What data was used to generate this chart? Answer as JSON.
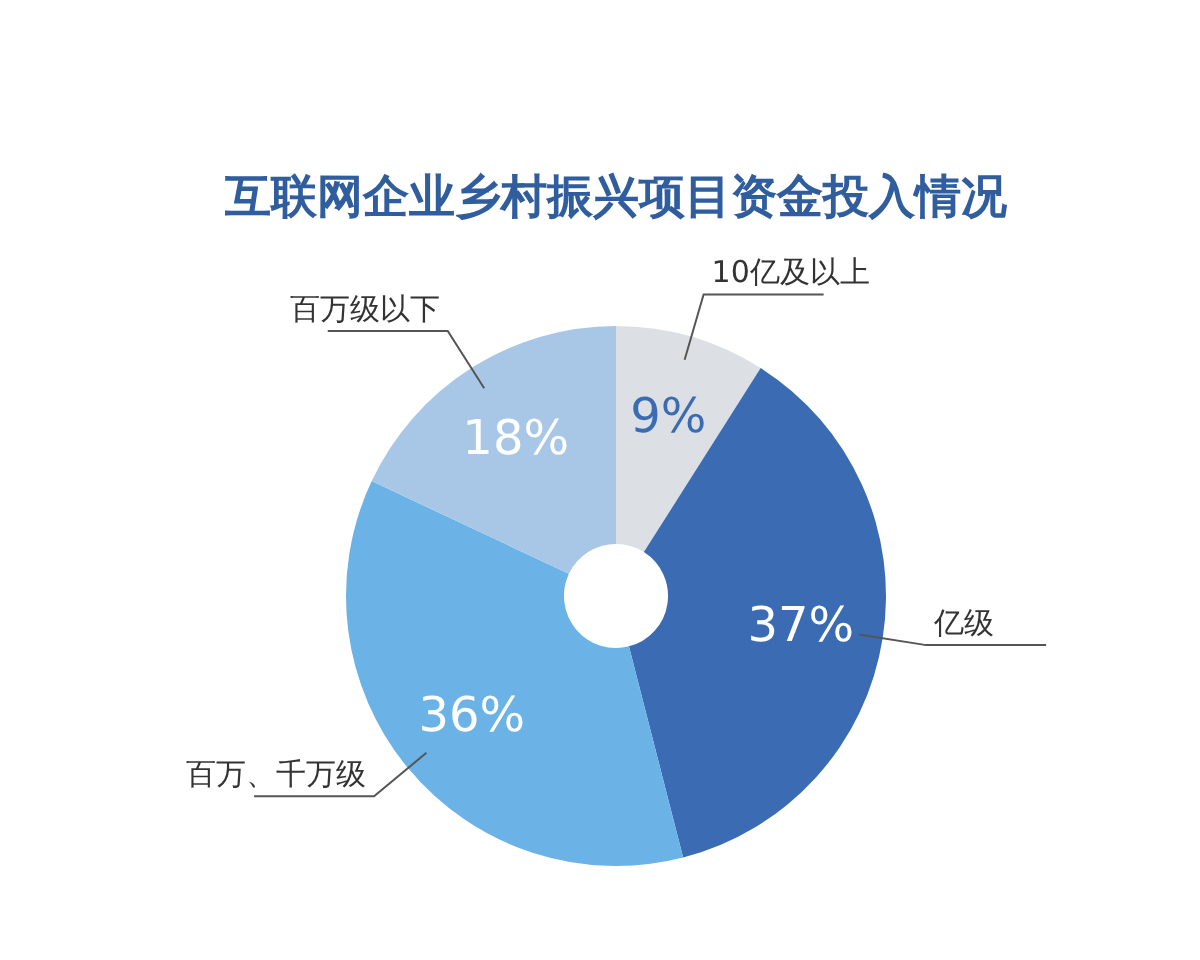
{
  "chart_data": {
    "type": "donut",
    "title": "互联网企业乡村振兴项目资金投入情况",
    "categories": [
      "10亿及以上",
      "亿级",
      "百万、千万级",
      "百万级以下"
    ],
    "values": [
      9,
      37,
      36,
      18
    ],
    "value_labels": [
      "9%",
      "37%",
      "36%",
      "18%"
    ],
    "colors": [
      "#dcdfe4",
      "#3b6cb3",
      "#6bb3e6",
      "#a8c7e6"
    ]
  }
}
